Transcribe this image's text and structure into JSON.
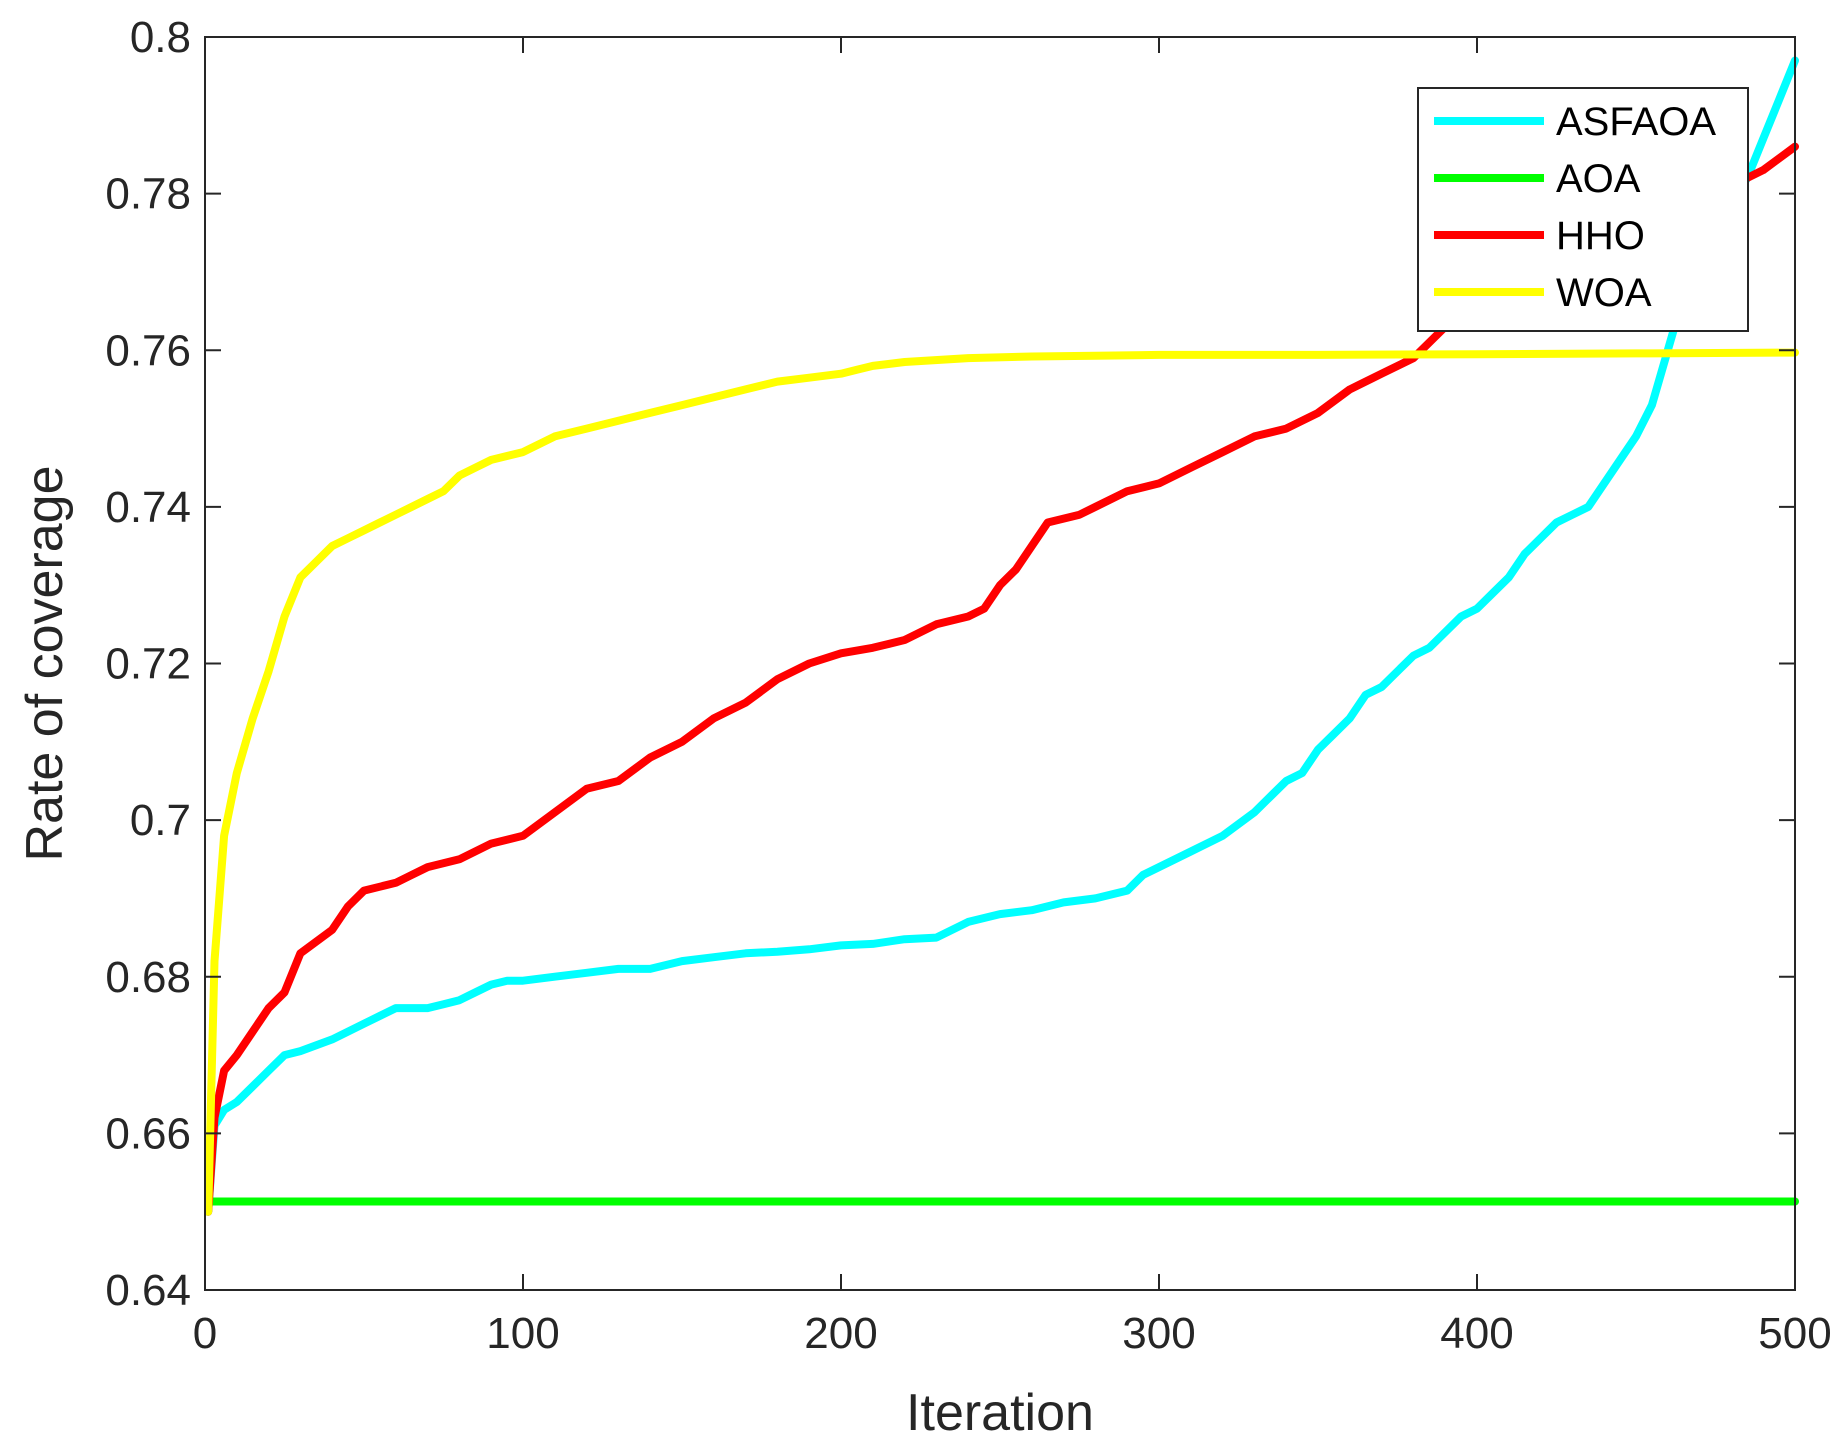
{
  "chart_data": {
    "type": "line",
    "title": "",
    "xlabel": "Iteration",
    "ylabel": "Rate of coverage",
    "xlim": [
      0,
      500
    ],
    "ylim": [
      0.64,
      0.8
    ],
    "xticks": [
      0,
      100,
      200,
      300,
      400,
      500
    ],
    "yticks": [
      0.64,
      0.66,
      0.68,
      0.7,
      0.72,
      0.74,
      0.76,
      0.78,
      0.8
    ],
    "xtick_labels": [
      "0",
      "100",
      "200",
      "300",
      "400",
      "500"
    ],
    "ytick_labels": [
      "0.64",
      "0.66",
      "0.68",
      "0.7",
      "0.72",
      "0.74",
      "0.76",
      "0.78",
      "0.8"
    ],
    "grid": false,
    "legend_position": "top-right",
    "series": [
      {
        "name": "ASFAOA",
        "color": "#00ffff",
        "x": [
          1,
          3,
          6,
          10,
          15,
          20,
          25,
          30,
          40,
          50,
          55,
          60,
          65,
          70,
          75,
          80,
          85,
          90,
          95,
          100,
          110,
          120,
          130,
          140,
          150,
          160,
          170,
          180,
          190,
          200,
          210,
          220,
          230,
          240,
          250,
          260,
          270,
          280,
          290,
          295,
          300,
          310,
          320,
          330,
          335,
          340,
          345,
          350,
          355,
          360,
          365,
          370,
          375,
          380,
          385,
          390,
          395,
          400,
          405,
          410,
          415,
          420,
          425,
          430,
          435,
          440,
          445,
          450,
          455,
          460,
          465,
          470,
          475,
          480,
          485,
          490,
          495,
          500
        ],
        "y": [
          0.65,
          0.661,
          0.663,
          0.664,
          0.666,
          0.668,
          0.67,
          0.6705,
          0.672,
          0.674,
          0.675,
          0.676,
          0.676,
          0.676,
          0.6765,
          0.677,
          0.678,
          0.679,
          0.6795,
          0.6795,
          0.68,
          0.6805,
          0.681,
          0.681,
          0.682,
          0.6825,
          0.683,
          0.6832,
          0.6835,
          0.684,
          0.6842,
          0.6848,
          0.685,
          0.687,
          0.688,
          0.6885,
          0.6895,
          0.69,
          0.691,
          0.693,
          0.694,
          0.696,
          0.698,
          0.701,
          0.703,
          0.705,
          0.706,
          0.709,
          0.711,
          0.713,
          0.716,
          0.717,
          0.719,
          0.721,
          0.722,
          0.724,
          0.726,
          0.727,
          0.729,
          0.731,
          0.734,
          0.736,
          0.738,
          0.739,
          0.74,
          0.743,
          0.746,
          0.749,
          0.753,
          0.76,
          0.767,
          0.772,
          0.776,
          0.779,
          0.782,
          0.787,
          0.792,
          0.797
        ]
      },
      {
        "name": "AOA",
        "color": "#00ff00",
        "x": [
          1,
          500
        ],
        "y": [
          0.6513,
          0.6513
        ]
      },
      {
        "name": "HHO",
        "color": "#ff0000",
        "x": [
          1,
          3,
          6,
          10,
          15,
          20,
          25,
          30,
          40,
          45,
          50,
          60,
          65,
          70,
          80,
          90,
          100,
          110,
          120,
          130,
          140,
          150,
          160,
          170,
          180,
          190,
          200,
          210,
          220,
          230,
          240,
          245,
          250,
          255,
          260,
          265,
          270,
          275,
          280,
          290,
          300,
          310,
          320,
          330,
          340,
          350,
          360,
          370,
          380,
          390,
          400,
          410,
          420,
          430,
          440,
          450,
          460,
          470,
          480,
          490,
          500
        ],
        "y": [
          0.65,
          0.662,
          0.668,
          0.67,
          0.673,
          0.676,
          0.678,
          0.683,
          0.686,
          0.689,
          0.691,
          0.692,
          0.693,
          0.694,
          0.695,
          0.697,
          0.698,
          0.701,
          0.704,
          0.705,
          0.708,
          0.71,
          0.713,
          0.715,
          0.718,
          0.72,
          0.7213,
          0.722,
          0.723,
          0.725,
          0.726,
          0.727,
          0.73,
          0.732,
          0.735,
          0.738,
          0.7385,
          0.739,
          0.74,
          0.742,
          0.743,
          0.745,
          0.747,
          0.749,
          0.75,
          0.752,
          0.755,
          0.757,
          0.759,
          0.763,
          0.766,
          0.769,
          0.771,
          0.773,
          0.775,
          0.777,
          0.779,
          0.78,
          0.781,
          0.783,
          0.786
        ]
      },
      {
        "name": "WOA",
        "color": "#ffff00",
        "x": [
          1,
          3,
          6,
          10,
          15,
          20,
          25,
          30,
          35,
          40,
          45,
          50,
          55,
          60,
          65,
          70,
          75,
          80,
          85,
          90,
          100,
          110,
          120,
          130,
          140,
          150,
          160,
          170,
          180,
          190,
          200,
          205,
          210,
          220,
          240,
          260,
          280,
          300,
          350,
          400,
          450,
          500
        ],
        "y": [
          0.65,
          0.682,
          0.698,
          0.706,
          0.713,
          0.719,
          0.726,
          0.731,
          0.733,
          0.735,
          0.736,
          0.737,
          0.738,
          0.739,
          0.74,
          0.741,
          0.742,
          0.744,
          0.745,
          0.746,
          0.747,
          0.749,
          0.75,
          0.751,
          0.752,
          0.753,
          0.754,
          0.755,
          0.756,
          0.7565,
          0.757,
          0.7575,
          0.758,
          0.7585,
          0.759,
          0.7592,
          0.7593,
          0.7594,
          0.7594,
          0.7595,
          0.7596,
          0.7597
        ]
      }
    ]
  }
}
